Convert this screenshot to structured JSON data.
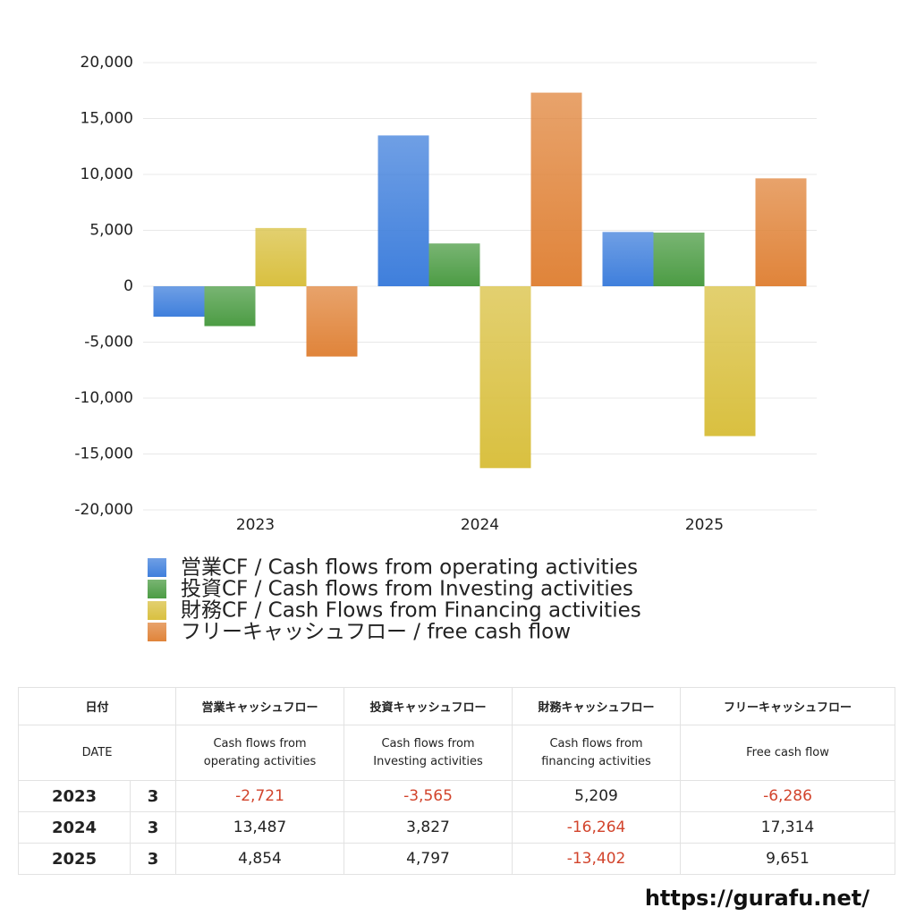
{
  "chart_data": {
    "type": "bar",
    "categories": [
      "2023",
      "2024",
      "2025"
    ],
    "series": [
      {
        "name": "営業CF / Cash flows from operating activities",
        "color": "#3f7fdc",
        "values": [
          -2721,
          13487,
          4854
        ]
      },
      {
        "name": "投資CF / Cash flows from Investing activities",
        "color": "#4c9c44",
        "values": [
          -3565,
          3827,
          4797
        ]
      },
      {
        "name": "財務CF / Cash Flows from Financing activities",
        "color": "#d9c040",
        "values": [
          5209,
          -16264,
          -13402
        ]
      },
      {
        "name": "フリーキャッシュフロー / free cash flow",
        "color": "#e0843a",
        "values": [
          -6286,
          17314,
          9651
        ]
      }
    ],
    "ylim": [
      -20000,
      20000
    ],
    "yticks": [
      {
        "value": -20000,
        "label": "-20,000"
      },
      {
        "value": -15000,
        "label": "-15,000"
      },
      {
        "value": -10000,
        "label": "-10,000"
      },
      {
        "value": -5000,
        "label": "-5,000"
      },
      0,
      {
        "value": 5000,
        "label": "5,000"
      },
      {
        "value": 10000,
        "label": "10,000"
      },
      {
        "value": 15000,
        "label": "15,000"
      },
      {
        "value": 20000,
        "label": "20,000"
      }
    ],
    "grid": true
  },
  "table": {
    "header": [
      "日付",
      "営業キャッシュフロー",
      "投資キャッシュフロー",
      "財務キャッシュフロー",
      "フリーキャッシュフロー"
    ],
    "subheader": [
      "DATE",
      [
        "Cash flows from",
        "operating activities"
      ],
      [
        "Cash flows from",
        "Investing activities"
      ],
      [
        "Cash flows from",
        "financing activities"
      ],
      "Free cash flow"
    ],
    "rows": [
      [
        "2023",
        "3",
        "-2,721",
        "-3,565",
        "5,209",
        "-6,286"
      ],
      [
        "2024",
        "3",
        "13,487",
        "3,827",
        "-16,264",
        "17,314"
      ],
      [
        "2025",
        "3",
        "4,854",
        "4,797",
        "-13,402",
        "9,651"
      ]
    ]
  },
  "footer": "https://gurafu.net/"
}
